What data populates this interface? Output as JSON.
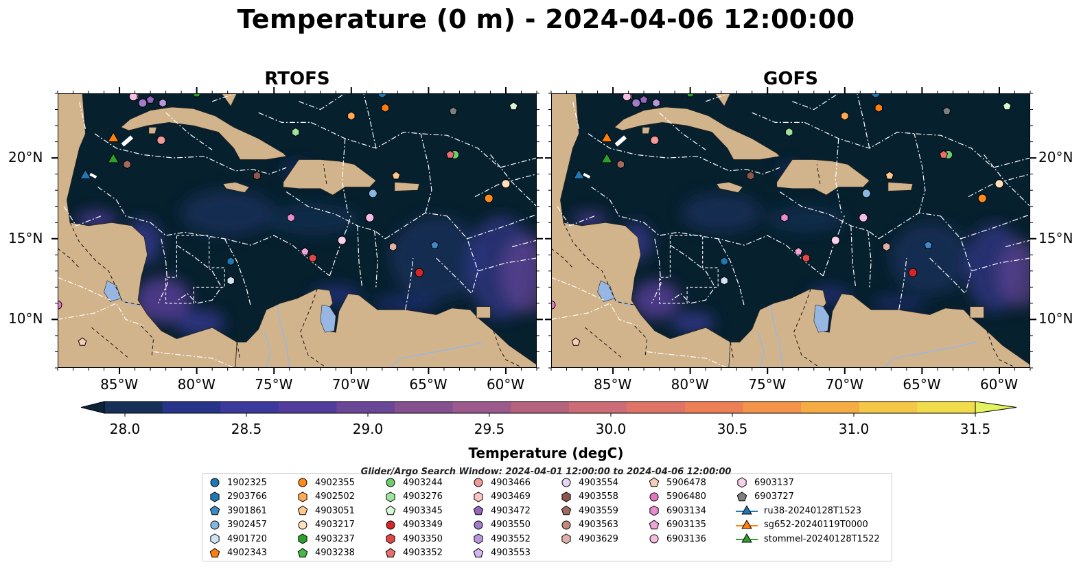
{
  "title": "Temperature (0 m) - 2024-04-06 12:00:00",
  "panels": [
    {
      "title": "RTOFS"
    },
    {
      "title": "GOFS"
    }
  ],
  "axes": {
    "lon_ticks": [
      {
        "value": -85,
        "label": "85°W"
      },
      {
        "value": -80,
        "label": "80°W"
      },
      {
        "value": -75,
        "label": "75°W"
      },
      {
        "value": -70,
        "label": "70°W"
      },
      {
        "value": -65,
        "label": "65°W"
      },
      {
        "value": -60,
        "label": "60°W"
      }
    ],
    "lat_ticks": [
      {
        "value": 20,
        "label": "20°N"
      },
      {
        "value": 15,
        "label": "15°N"
      },
      {
        "value": 10,
        "label": "10°N"
      }
    ],
    "lon_range": [
      -89,
      -58
    ],
    "lat_range": [
      7,
      24
    ]
  },
  "colorbar": {
    "label": "Temperature (degC)",
    "min": 28.0,
    "max": 31.5,
    "extend": "both",
    "ticks": [
      "28.0",
      "28.5",
      "29.0",
      "29.5",
      "30.0",
      "30.5",
      "31.0",
      "31.5"
    ],
    "colors": [
      "#0d2436",
      "#17305a",
      "#27348a",
      "#3b3a9c",
      "#513b9b",
      "#6a4697",
      "#85508f",
      "#9c5a8c",
      "#b5627f",
      "#cb6c76",
      "#df7466",
      "#ec7f55",
      "#f3944a",
      "#f6ac44",
      "#f4c746",
      "#f1dd4c",
      "#e5f35e"
    ]
  },
  "legend": {
    "title": "Glider/Argo Search Window: 2024-04-01 12:00:00 to 2024-04-06 12:00:00",
    "columns": [
      [
        {
          "label": "1902325",
          "marker": "circle",
          "color": "#1f77b4"
        },
        {
          "label": "2903766",
          "marker": "hexagon",
          "color": "#1f77b4"
        },
        {
          "label": "3901861",
          "marker": "pentagon",
          "color": "#3d8ac4"
        },
        {
          "label": "3902457",
          "marker": "circle",
          "color": "#86b7e2"
        },
        {
          "label": "4901720",
          "marker": "hexagon",
          "color": "#cfe3f4"
        },
        {
          "label": "4902343",
          "marker": "pentagon",
          "color": "#ff7f0e"
        }
      ],
      [
        {
          "label": "4902355",
          "marker": "circle",
          "color": "#ff8c1a"
        },
        {
          "label": "4902502",
          "marker": "hexagon",
          "color": "#ffaa55"
        },
        {
          "label": "4903051",
          "marker": "pentagon",
          "color": "#ffc891"
        },
        {
          "label": "4903217",
          "marker": "circle",
          "color": "#ffe0bf"
        },
        {
          "label": "4903237",
          "marker": "hexagon",
          "color": "#2ca02c"
        },
        {
          "label": "4903238",
          "marker": "pentagon",
          "color": "#46b846"
        }
      ],
      [
        {
          "label": "4903244",
          "marker": "circle",
          "color": "#6ccf6c"
        },
        {
          "label": "4903276",
          "marker": "hexagon",
          "color": "#9fe39f"
        },
        {
          "label": "4903345",
          "marker": "pentagon",
          "color": "#d6f7d6"
        },
        {
          "label": "4903349",
          "marker": "circle",
          "color": "#d62728"
        },
        {
          "label": "4903350",
          "marker": "hexagon",
          "color": "#e04646"
        },
        {
          "label": "4903352",
          "marker": "pentagon",
          "color": "#ea6e6e"
        }
      ],
      [
        {
          "label": "4903466",
          "marker": "circle",
          "color": "#f29a9a"
        },
        {
          "label": "4903469",
          "marker": "hexagon",
          "color": "#f9c4c4"
        },
        {
          "label": "4903472",
          "marker": "pentagon",
          "color": "#9467bd"
        },
        {
          "label": "4903550",
          "marker": "circle",
          "color": "#a07ccb"
        },
        {
          "label": "4903552",
          "marker": "hexagon",
          "color": "#b896dc"
        },
        {
          "label": "4903553",
          "marker": "pentagon",
          "color": "#d2b8ee"
        }
      ],
      [
        {
          "label": "4903554",
          "marker": "circle",
          "color": "#e4d4f6"
        },
        {
          "label": "4903558",
          "marker": "hexagon",
          "color": "#8c564b"
        },
        {
          "label": "4903559",
          "marker": "pentagon",
          "color": "#a06a5e"
        },
        {
          "label": "4903563",
          "marker": "circle",
          "color": "#bf8a7d"
        },
        {
          "label": "4903629",
          "marker": "hexagon",
          "color": "#ddb1a5"
        },
        null
      ],
      [
        {
          "label": "5906478",
          "marker": "pentagon",
          "color": "#f2cfb8"
        },
        {
          "label": "5906480",
          "marker": "circle",
          "color": "#e377c2"
        },
        {
          "label": "6903134",
          "marker": "hexagon",
          "color": "#e88ccc"
        },
        {
          "label": "6903135",
          "marker": "pentagon",
          "color": "#efa3d6"
        },
        {
          "label": "6903136",
          "marker": "circle",
          "color": "#f5bde2"
        },
        null
      ],
      [
        {
          "label": "6903137",
          "marker": "hexagon",
          "color": "#f8d2ec"
        },
        {
          "label": "6903727",
          "marker": "pentagon",
          "color": "#7f7f7f"
        },
        {
          "label": "ru38-20240128T1523",
          "marker": "triangle-line",
          "color": "#1f77b4"
        },
        {
          "label": "sg652-20240119T0000",
          "marker": "triangle-line",
          "color": "#ff7f0e"
        },
        {
          "label": "stommel-20240128T1522",
          "marker": "triangle-line",
          "color": "#2ca02c"
        },
        null
      ]
    ]
  },
  "colors": {
    "ocean_base": "#07202e",
    "land": "#d2b48c",
    "lakes": "#97b6e1",
    "eez_lines": "#ffffff"
  }
}
